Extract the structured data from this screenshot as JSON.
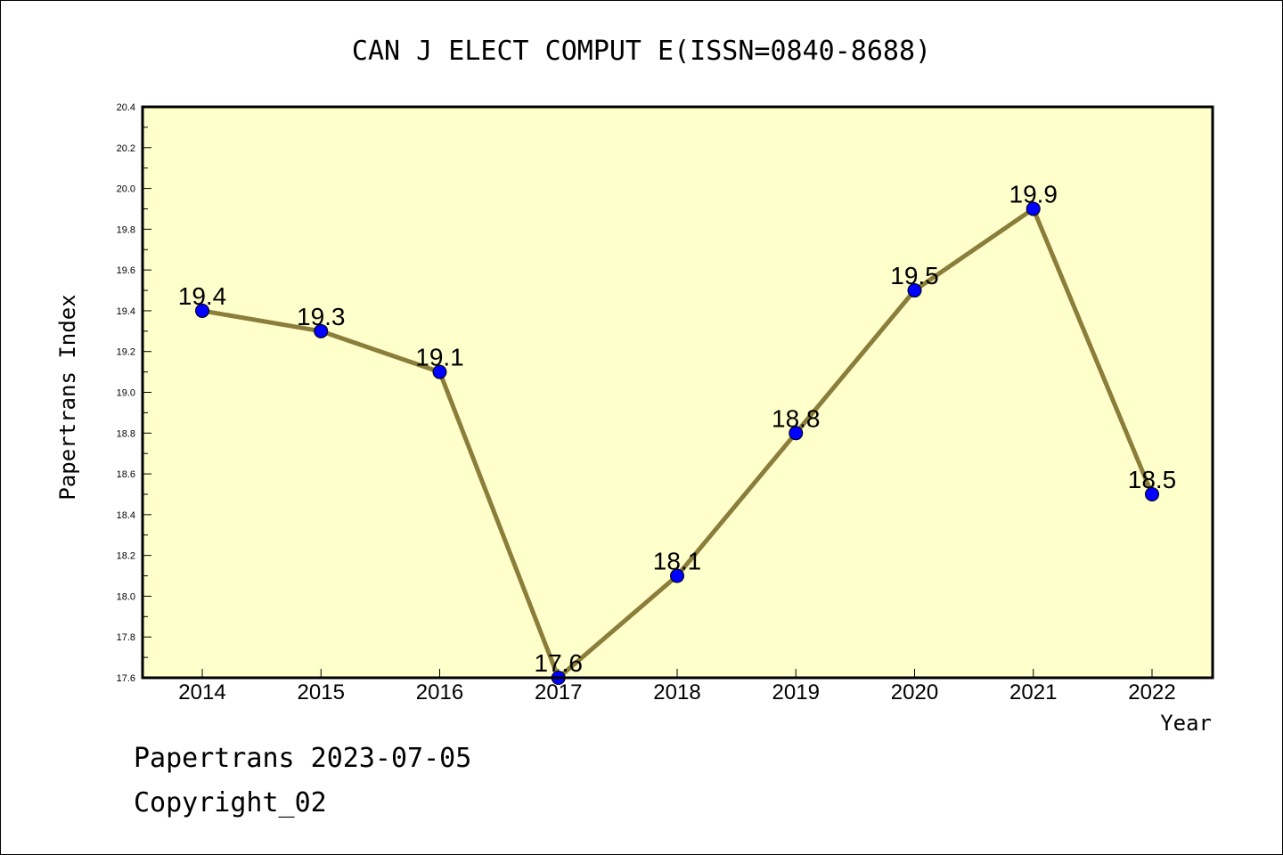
{
  "chart_data": {
    "type": "line",
    "title": "CAN J ELECT COMPUT E(ISSN=0840-8688)",
    "xlabel": "Year",
    "ylabel": "Papertrans Index",
    "categories": [
      "2014",
      "2015",
      "2016",
      "2017",
      "2018",
      "2019",
      "2020",
      "2021",
      "2022"
    ],
    "series": [
      {
        "values": [
          19.4,
          19.3,
          19.1,
          17.6,
          18.1,
          18.8,
          19.5,
          19.9,
          18.5
        ]
      }
    ],
    "data_labels": [
      "19.4",
      "19.3",
      "19.1",
      "17.6",
      "18.1",
      "18.8",
      "19.5",
      "19.9",
      "18.5"
    ],
    "ylim": [
      17.6,
      20.4
    ],
    "yticks": [
      "17.6",
      "17.8",
      "18.0",
      "18.2",
      "18.4",
      "18.6",
      "18.8",
      "19.0",
      "19.2",
      "19.4",
      "19.6",
      "19.8",
      "20.0",
      "20.2",
      "20.4"
    ],
    "grid": false,
    "colors": {
      "plot_background": "#ffffcc",
      "line": "#8b7d3a",
      "marker": "#0000ff"
    }
  },
  "footer": {
    "date_line": "Papertrans 2023-07-05",
    "copyright": "Copyright_02"
  }
}
